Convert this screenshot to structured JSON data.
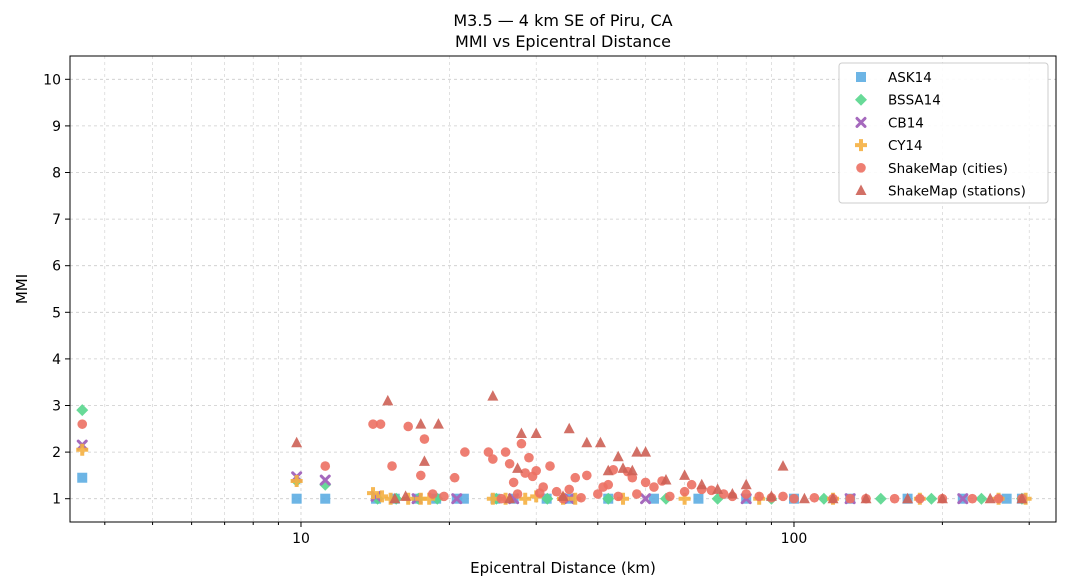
{
  "chart_data": {
    "type": "scatter",
    "title": "M3.5 — 4 km SE of Piru, CA",
    "subtitle": "MMI vs Epicentral Distance",
    "xlabel": "Epicentral Distance (km)",
    "ylabel": "MMI",
    "xscale": "log",
    "xlim": [
      3.4,
      340
    ],
    "ylim": [
      0.5,
      10.5
    ],
    "xticks": [
      10,
      100
    ],
    "yticks": [
      1,
      2,
      3,
      4,
      5,
      6,
      7,
      8,
      9,
      10
    ],
    "grid": true,
    "legend_position": "top-right",
    "series": [
      {
        "name": "ASK14",
        "marker": "square",
        "color": "#5dade2",
        "x": [
          3.6,
          9.8,
          11.2,
          14.2,
          15.5,
          17.2,
          18.8,
          20.7,
          21.4,
          24.8,
          27.0,
          31.5,
          35.2,
          42.0,
          52.0,
          64.0,
          80.0,
          100.0,
          130.0,
          170.0,
          220.0,
          270.0,
          290.0
        ],
        "y": [
          1.45,
          1.0,
          1.0,
          1.0,
          1.0,
          1.0,
          1.0,
          1.0,
          1.0,
          1.0,
          1.0,
          1.0,
          1.0,
          1.0,
          1.0,
          1.0,
          1.0,
          1.0,
          1.0,
          1.0,
          1.0,
          1.0,
          1.0
        ]
      },
      {
        "name": "BSSA14",
        "marker": "diamond",
        "color": "#58d68d",
        "x": [
          3.6,
          9.8,
          11.2,
          14.3,
          15.6,
          17.3,
          18.9,
          24.9,
          31.6,
          42.0,
          55.0,
          70.0,
          90.0,
          115.0,
          150.0,
          190.0,
          240.0,
          290.0
        ],
        "y": [
          2.9,
          1.38,
          1.3,
          1.0,
          1.0,
          1.0,
          1.0,
          1.0,
          1.0,
          1.0,
          1.0,
          1.0,
          1.0,
          1.0,
          1.0,
          1.0,
          1.0,
          1.0
        ]
      },
      {
        "name": "CB14",
        "marker": "x",
        "color": "#a569bd",
        "x": [
          3.6,
          9.8,
          11.2,
          14.2,
          17.2,
          20.7,
          27.0,
          35.0,
          50.0,
          80.0,
          130.0,
          220.0
        ],
        "y": [
          2.15,
          1.47,
          1.4,
          1.05,
          1.0,
          1.0,
          1.0,
          1.0,
          1.0,
          1.0,
          1.0,
          1.0
        ]
      },
      {
        "name": "CY14",
        "marker": "plus",
        "color": "#f5b041",
        "x": [
          3.6,
          9.8,
          14.0,
          14.6,
          15.2,
          16.5,
          17.5,
          18.2,
          24.5,
          26.0,
          28.5,
          30.0,
          34.0,
          36.0,
          45.0,
          60.0,
          85.0,
          120.0,
          180.0,
          260.0,
          295.0
        ],
        "y": [
          2.05,
          1.38,
          1.12,
          1.05,
          1.0,
          1.0,
          1.0,
          1.0,
          1.0,
          1.0,
          1.0,
          1.05,
          1.0,
          1.0,
          1.0,
          1.0,
          1.0,
          1.0,
          1.0,
          1.0,
          1.0
        ]
      },
      {
        "name": "ShakeMap (cities)",
        "marker": "circle",
        "color": "#ec7063",
        "x": [
          3.6,
          11.2,
          14.0,
          14.5,
          15.3,
          16.5,
          17.5,
          17.8,
          18.5,
          19.5,
          20.5,
          21.5,
          24.0,
          24.5,
          25.5,
          26.0,
          26.5,
          27.0,
          27.5,
          28.0,
          28.5,
          29.0,
          29.5,
          30.0,
          30.5,
          31.0,
          32.0,
          33.0,
          34.0,
          35.0,
          36.0,
          37.0,
          38.0,
          40.0,
          41.0,
          42.0,
          43.0,
          44.0,
          46.0,
          47.0,
          48.0,
          50.0,
          52.0,
          54.0,
          56.0,
          60.0,
          62.0,
          65.0,
          68.0,
          72.0,
          75.0,
          80.0,
          85.0,
          90.0,
          95.0,
          100.0,
          110.0,
          120.0,
          130.0,
          140.0,
          160.0,
          180.0,
          200.0,
          230.0,
          260.0,
          290.0
        ],
        "y": [
          2.6,
          1.7,
          2.6,
          2.6,
          1.7,
          2.55,
          1.5,
          2.28,
          1.1,
          1.05,
          1.45,
          2.0,
          2.0,
          1.85,
          1.0,
          2.0,
          1.75,
          1.35,
          1.1,
          2.18,
          1.55,
          1.88,
          1.48,
          1.6,
          1.12,
          1.25,
          1.7,
          1.15,
          1.0,
          1.2,
          1.45,
          1.02,
          1.5,
          1.1,
          1.25,
          1.3,
          1.62,
          1.05,
          1.58,
          1.45,
          1.1,
          1.35,
          1.25,
          1.38,
          1.05,
          1.15,
          1.3,
          1.2,
          1.18,
          1.1,
          1.05,
          1.1,
          1.05,
          1.02,
          1.05,
          1.0,
          1.02,
          1.0,
          1.0,
          1.0,
          1.0,
          1.0,
          1.0,
          1.0,
          1.0,
          1.0
        ]
      },
      {
        "name": "ShakeMap (stations)",
        "marker": "triangle",
        "color": "#cd6155",
        "x": [
          9.8,
          15.0,
          15.5,
          16.3,
          17.5,
          17.8,
          19.0,
          24.5,
          26.5,
          27.5,
          28.0,
          30.0,
          34.0,
          35.0,
          38.0,
          40.5,
          42.0,
          44.0,
          45.0,
          47.0,
          48.0,
          50.0,
          55.0,
          60.0,
          65.0,
          70.0,
          75.0,
          80.0,
          90.0,
          95.0,
          105.0,
          120.0,
          140.0,
          170.0,
          200.0,
          250.0,
          290.0
        ],
        "y": [
          2.2,
          3.1,
          1.0,
          1.05,
          2.6,
          1.8,
          2.6,
          3.2,
          1.0,
          1.65,
          2.4,
          2.4,
          1.05,
          2.5,
          2.2,
          2.2,
          1.6,
          1.9,
          1.65,
          1.6,
          2.0,
          2.0,
          1.4,
          1.5,
          1.3,
          1.2,
          1.1,
          1.3,
          1.05,
          1.7,
          1.0,
          1.0,
          1.0,
          1.0,
          1.0,
          1.0,
          1.0
        ]
      }
    ]
  }
}
